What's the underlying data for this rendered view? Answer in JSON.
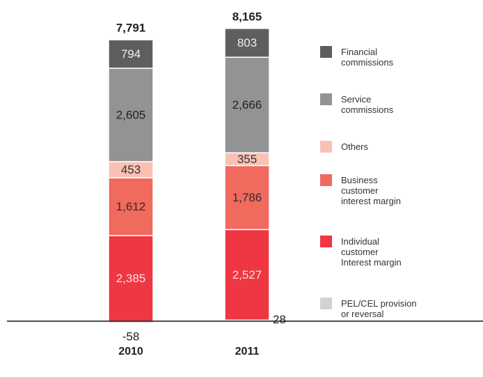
{
  "chart_data": {
    "type": "stacked_bar",
    "categories": [
      "2010",
      "2011"
    ],
    "ylim": [
      -1500,
      8900
    ],
    "series": [
      {
        "name": "PEL/CEL provision\nor reversal",
        "color": "#d2d2d2",
        "label_color": "#222",
        "values": [
          -58,
          28
        ],
        "value_labels": [
          "-58",
          "28"
        ]
      },
      {
        "name": "Individual\ncustomer\nInterest margin",
        "color": "#ee3742",
        "label_color": "#fde0e0",
        "values": [
          2385,
          2527
        ],
        "value_labels": [
          "2,385",
          "2,527"
        ]
      },
      {
        "name": "Business\ncustomer\ninterest margin",
        "color": "#f06a5e",
        "label_color": "#3a2a28",
        "values": [
          1612,
          1786
        ],
        "value_labels": [
          "1,612",
          "1,786"
        ]
      },
      {
        "name": "Others",
        "color": "#f9c1b4",
        "label_color": "#333",
        "values": [
          453,
          355
        ],
        "value_labels": [
          "453",
          "355"
        ]
      },
      {
        "name": "Service\ncommissions",
        "color": "#939393",
        "label_color": "#222",
        "values": [
          2605,
          2666
        ],
        "value_labels": [
          "2,605",
          "2,666"
        ]
      },
      {
        "name": "Financial\ncommissions",
        "color": "#5e5e5e",
        "label_color": "#eee",
        "values": [
          794,
          803
        ],
        "value_labels": [
          "794",
          "803"
        ]
      }
    ],
    "totals": [
      7791,
      8165
    ],
    "total_labels": [
      "7,791",
      "8,165"
    ]
  }
}
